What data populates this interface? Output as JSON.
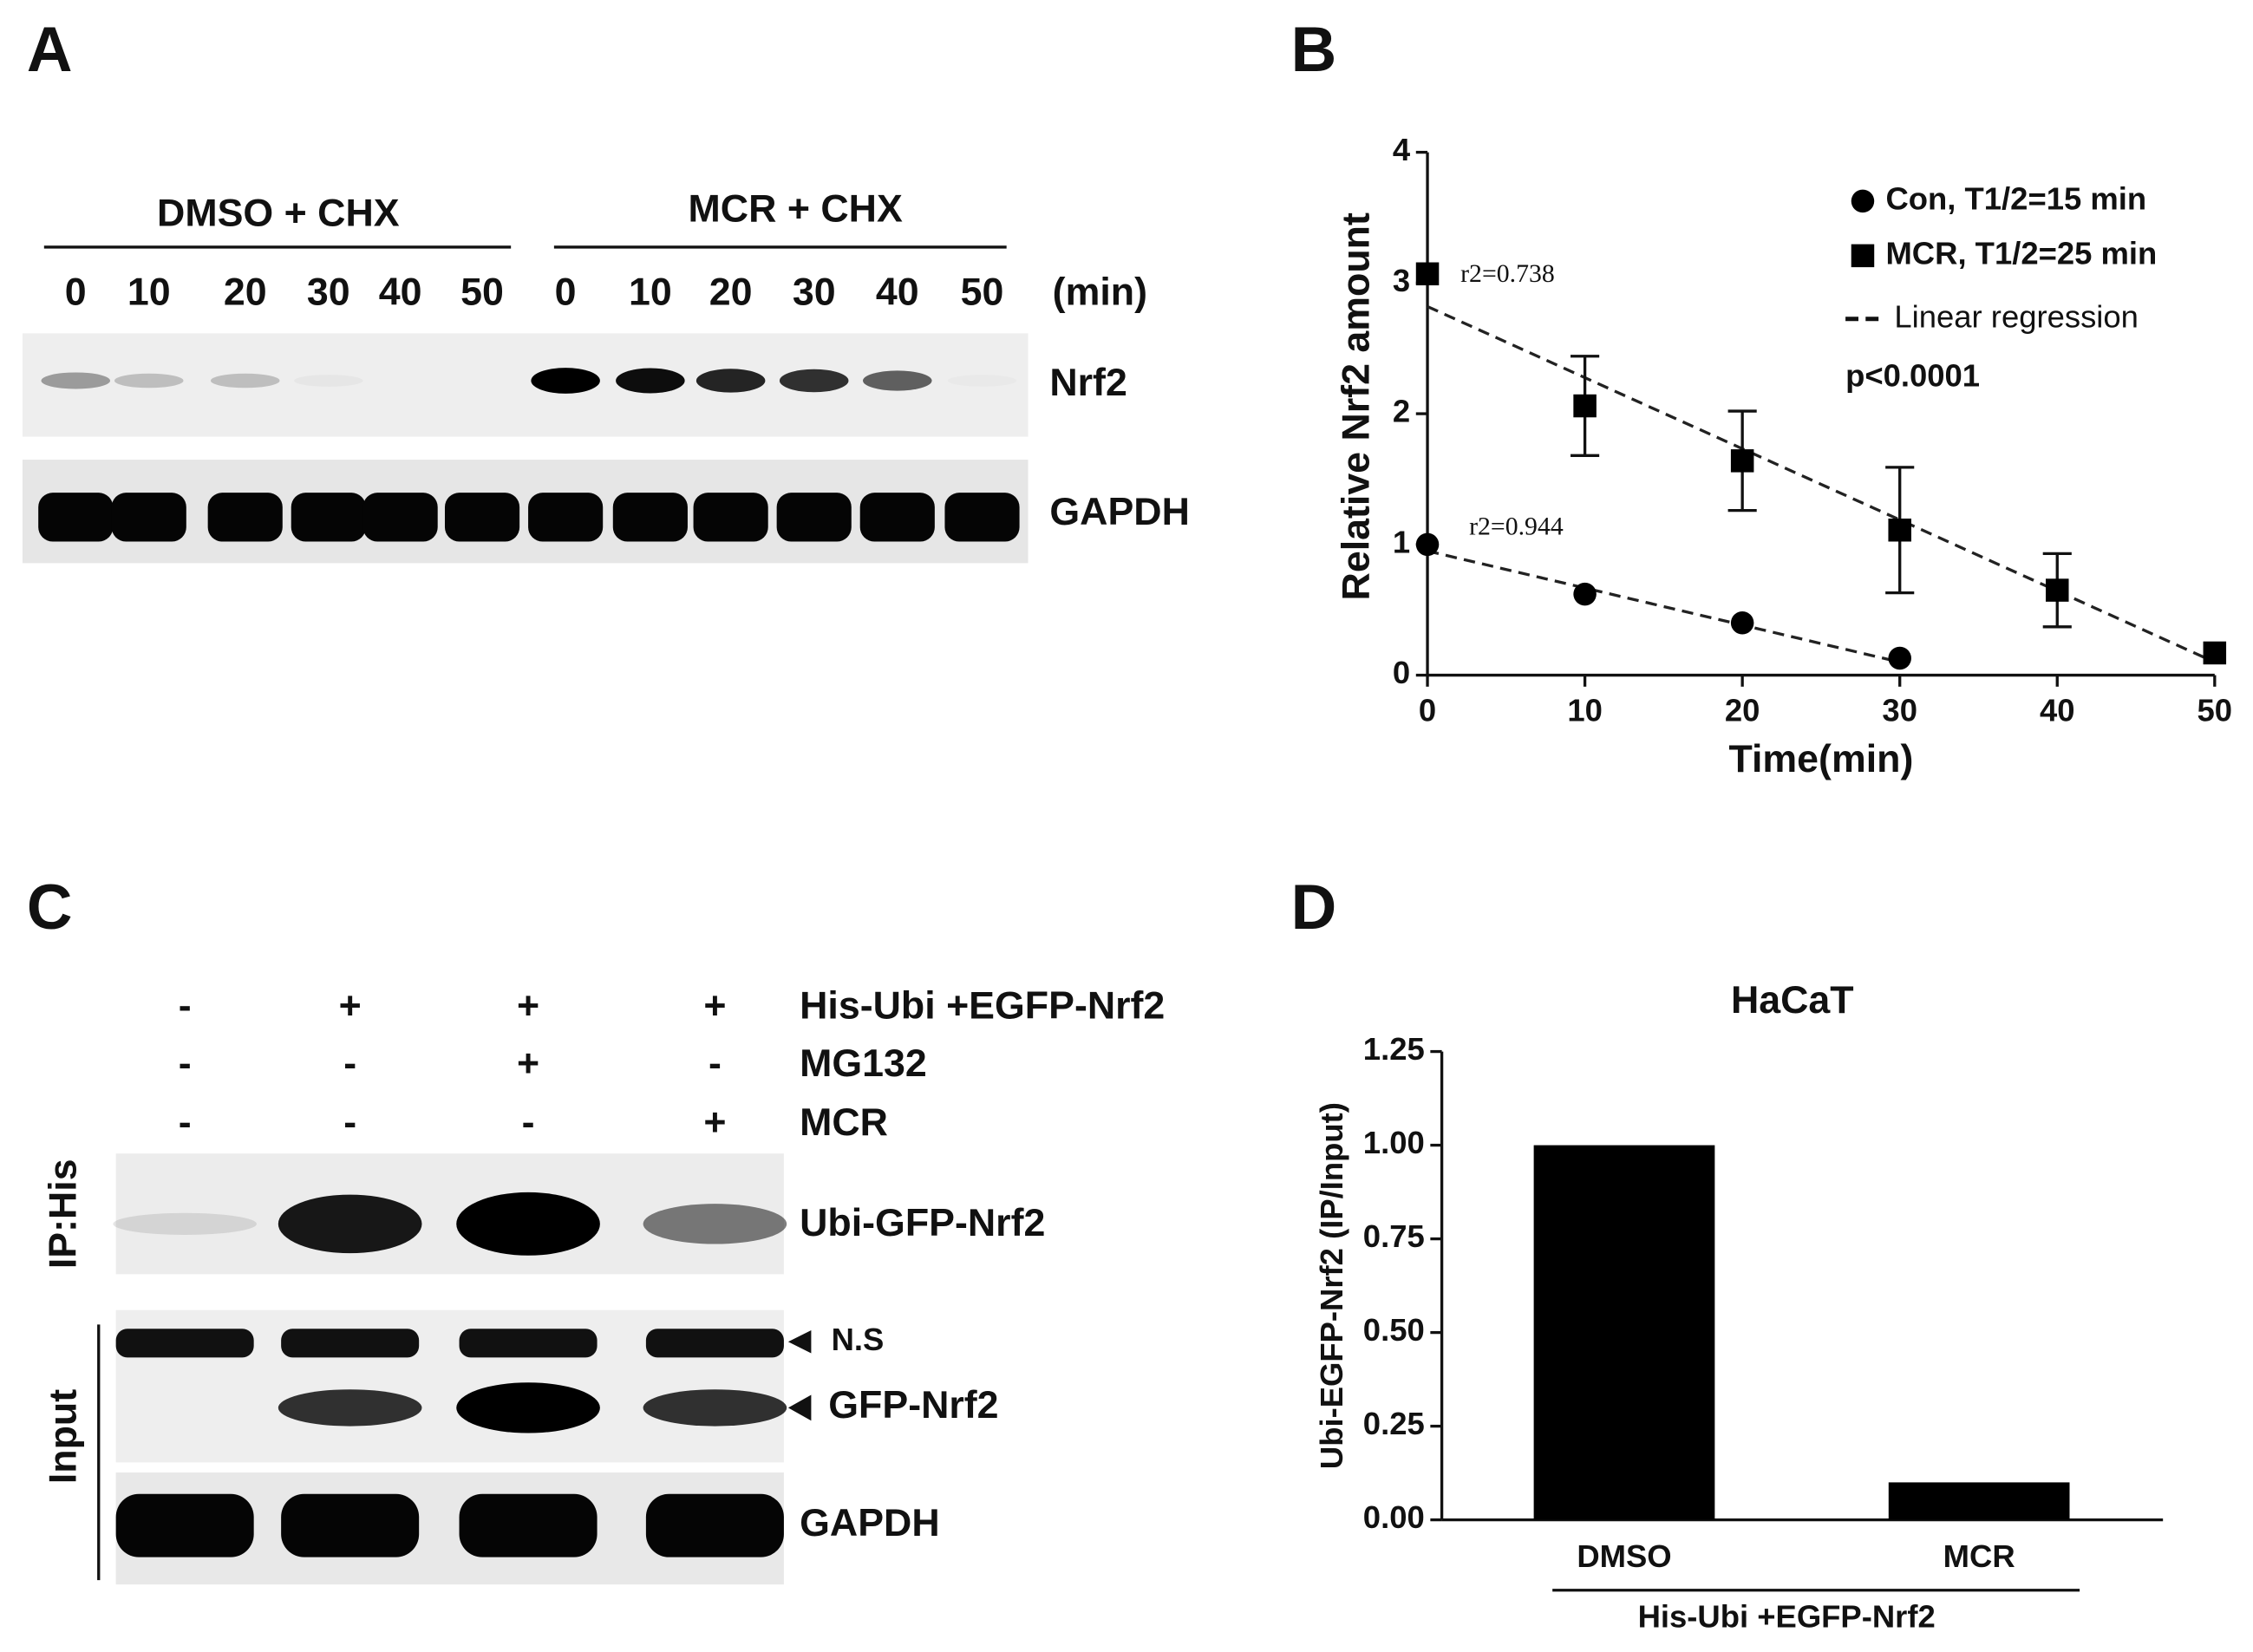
{
  "panel_labels": [
    "A",
    "B",
    "C",
    "D"
  ],
  "blot_a": {
    "groups": [
      "DMSO + CHX",
      "MCR + CHX"
    ],
    "times": [
      0,
      10,
      20,
      30,
      40,
      50,
      0,
      10,
      20,
      30,
      40,
      50
    ],
    "unit": "(min)",
    "bands": [
      "Nrf2",
      "GAPDH"
    ]
  },
  "blot_c": {
    "rows": [
      {
        "label": "His-Ubi  +EGFP-Nrf2",
        "signs": [
          "-",
          "+",
          "+",
          "+"
        ]
      },
      {
        "label": "MG132",
        "signs": [
          "-",
          "-",
          "+",
          "-"
        ]
      },
      {
        "label": "MCR",
        "signs": [
          "-",
          "-",
          "-",
          "+"
        ]
      }
    ],
    "side_labels": [
      "IP:His",
      "Input"
    ],
    "bands": [
      "Ubi-GFP-Nrf2",
      "N.S",
      "GFP-Nrf2",
      "GAPDH"
    ]
  },
  "chart_data": [
    {
      "type": "scatter",
      "xlabel": "Time(min)",
      "ylabel": "Relative Nrf2 amount",
      "xlim": [
        0,
        50
      ],
      "ylim": [
        0,
        4
      ],
      "xticks": [
        0,
        10,
        20,
        30,
        40,
        50
      ],
      "yticks": [
        0,
        1,
        2,
        3,
        4
      ],
      "series": [
        {
          "name": "Con,  T1/2=15 min",
          "marker": "circle",
          "color": "#000000",
          "x": [
            0,
            10,
            20,
            30
          ],
          "values": [
            1.0,
            0.62,
            0.4,
            0.13
          ],
          "fit": {
            "x": [
              0,
              30
            ],
            "values": [
              0.95,
              0.1
            ]
          }
        },
        {
          "name": "MCR, T1/2=25 min",
          "marker": "square",
          "color": "#000000",
          "x": [
            0,
            10,
            20,
            30,
            40,
            50
          ],
          "values": [
            3.07,
            2.06,
            1.64,
            1.11,
            0.65,
            0.17
          ],
          "errors": [
            null,
            0.38,
            0.38,
            0.48,
            0.28,
            null
          ],
          "fit": {
            "x": [
              0,
              50
            ],
            "values": [
              2.82,
              0.1
            ]
          }
        }
      ],
      "fit_label": "Linear regression",
      "p_value": "p<0.0001",
      "annotations": [
        "r2=0.738",
        "r2=0.944"
      ]
    },
    {
      "type": "bar",
      "title": "HaCaT",
      "ylabel": "Ubi-EGFP-Nrf2 (IP/Input)",
      "categories": [
        "DMSO",
        "MCR"
      ],
      "values": [
        1.0,
        0.1
      ],
      "color": "#000000",
      "group_label": "His-Ubi +EGFP-Nrf2",
      "ylim": [
        0,
        1.25
      ],
      "yticks": [
        {
          "value": 0,
          "label": "0.00"
        },
        {
          "value": 0.25,
          "label": "0.25"
        },
        {
          "value": 0.5,
          "label": "0.50"
        },
        {
          "value": 0.75,
          "label": "0.75"
        },
        {
          "value": 1,
          "label": "1.00"
        },
        {
          "value": 1.25,
          "label": "1.25"
        }
      ]
    }
  ]
}
